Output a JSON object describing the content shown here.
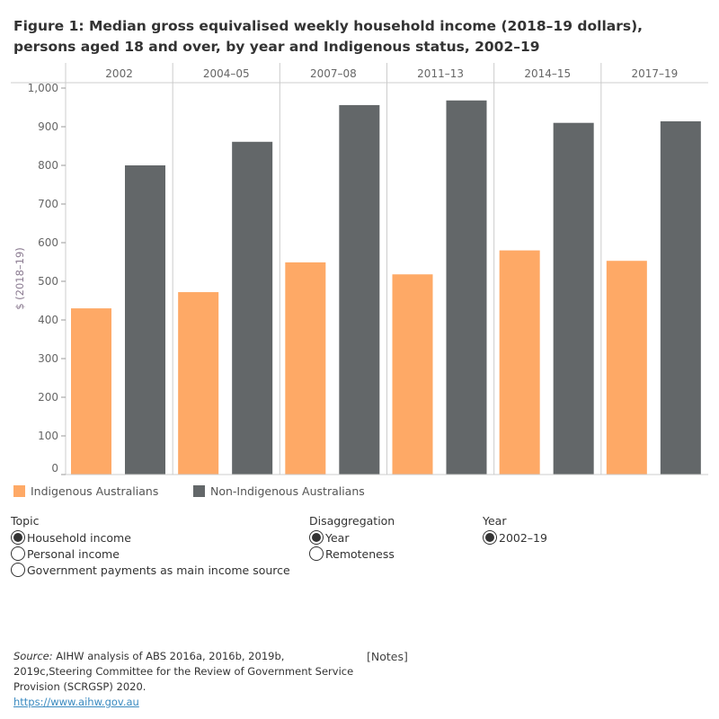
{
  "title": "Figure 1: Median gross equivalised weekly household income (2018–19 dollars), persons aged 18 and over, by year and Indigenous status, 2002–19",
  "chart_data": {
    "type": "bar",
    "categories": [
      "2002",
      "2004–05",
      "2007–08",
      "2011–13",
      "2014–15",
      "2017–19"
    ],
    "series": [
      {
        "name": "Indigenous Australians",
        "color": "#fea966",
        "values": [
          430,
          472,
          549,
          518,
          580,
          553
        ]
      },
      {
        "name": "Non-Indigenous Australians",
        "color": "#636769",
        "values": [
          800,
          861,
          956,
          968,
          910,
          914
        ]
      }
    ],
    "ylabel": "$ (2018–19)",
    "ylim": [
      0,
      1000
    ],
    "yticks": [
      0,
      100,
      200,
      300,
      400,
      500,
      600,
      700,
      800,
      900,
      1000
    ],
    "ytick_labels": [
      "0",
      "100",
      "200",
      "300",
      "400",
      "500",
      "600",
      "700",
      "800",
      "900",
      "1,000"
    ],
    "legend": "bottom"
  },
  "filters": {
    "topic": {
      "label": "Topic",
      "options": [
        {
          "label": "Household income",
          "selected": true
        },
        {
          "label": "Personal income",
          "selected": false
        },
        {
          "label": "Government payments as main income source",
          "selected": false
        }
      ]
    },
    "disaggregation": {
      "label": "Disaggregation",
      "options": [
        {
          "label": "Year",
          "selected": true
        },
        {
          "label": "Remoteness",
          "selected": false
        }
      ]
    },
    "year": {
      "label": "Year",
      "options": [
        {
          "label": "2002–19",
          "selected": true
        }
      ]
    }
  },
  "source": {
    "prefix": "Source:",
    "text": " AIHW analysis of ABS 2016a, 2016b, 2019b, 2019c,Steering Committee for the Review of Government Service Provision (SCRGSP) 2020.",
    "link": "https://www.aihw.gov.au"
  },
  "notes": "[Notes]"
}
